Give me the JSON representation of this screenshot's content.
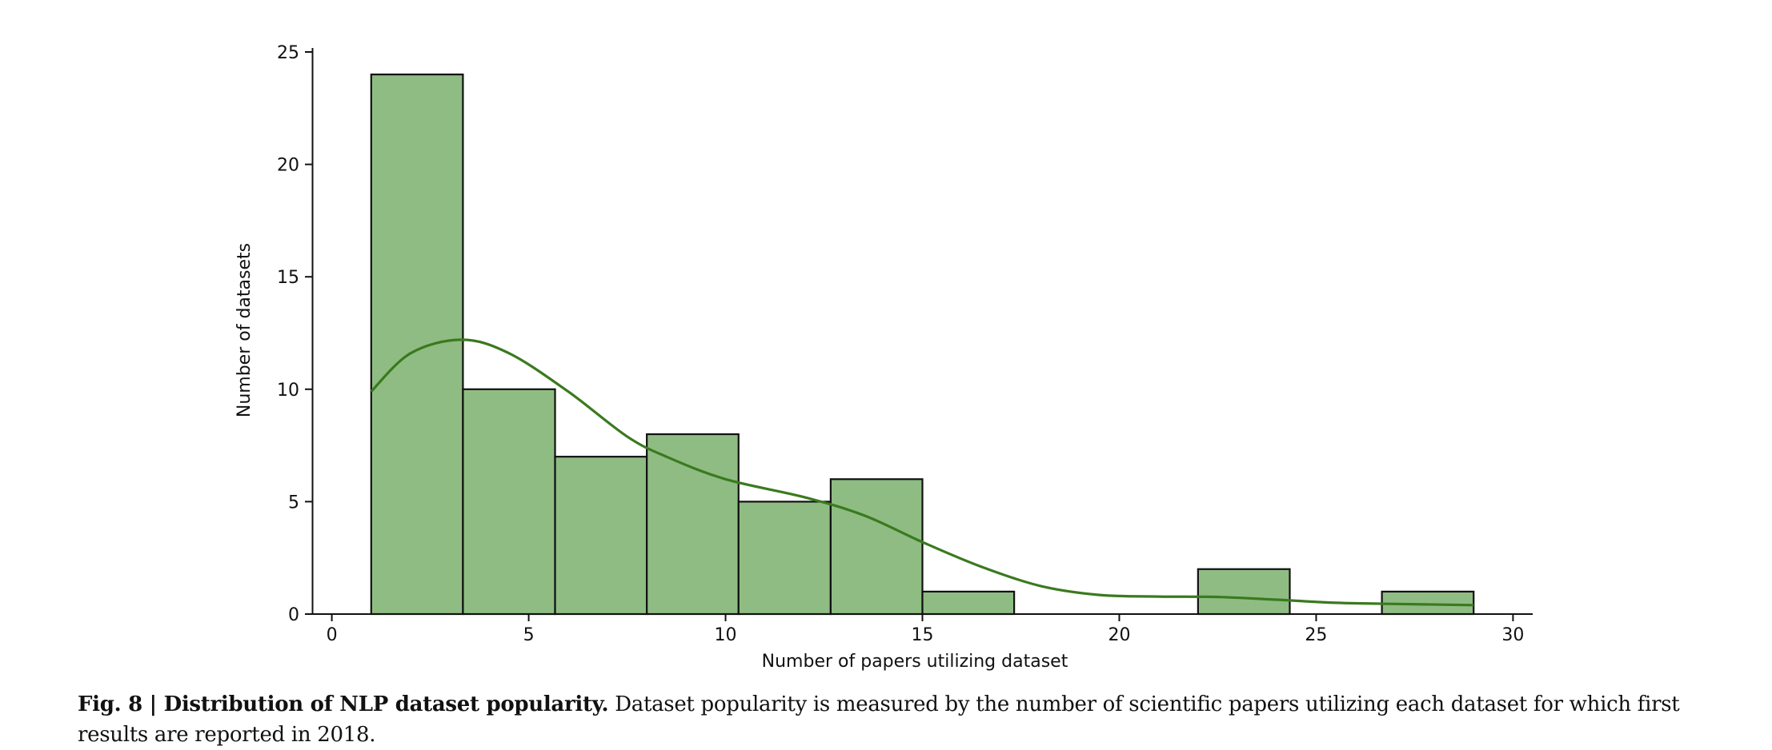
{
  "chart_data": {
    "type": "bar",
    "xlabel": "Number of papers utilizing dataset",
    "ylabel": "Number of datasets",
    "xlim": [
      -0.5,
      30.5
    ],
    "ylim": [
      0,
      25
    ],
    "x_ticks": [
      0,
      5,
      10,
      15,
      20,
      25,
      30
    ],
    "y_ticks": [
      0,
      5,
      10,
      15,
      20,
      25
    ],
    "bins": [
      {
        "x0": 1.0,
        "x1": 3.33,
        "count": 24
      },
      {
        "x0": 3.33,
        "x1": 5.67,
        "count": 10
      },
      {
        "x0": 5.67,
        "x1": 8.0,
        "count": 7
      },
      {
        "x0": 8.0,
        "x1": 10.33,
        "count": 8
      },
      {
        "x0": 10.33,
        "x1": 12.67,
        "count": 5
      },
      {
        "x0": 12.67,
        "x1": 15.0,
        "count": 6
      },
      {
        "x0": 15.0,
        "x1": 17.33,
        "count": 1
      },
      {
        "x0": 17.33,
        "x1": 19.67,
        "count": 0
      },
      {
        "x0": 19.67,
        "x1": 22.0,
        "count": 0
      },
      {
        "x0": 22.0,
        "x1": 24.33,
        "count": 2
      },
      {
        "x0": 24.33,
        "x1": 26.67,
        "count": 0
      },
      {
        "x0": 26.67,
        "x1": 29.0,
        "count": 1
      }
    ],
    "kde": {
      "x": [
        1.0,
        2.0,
        3.3,
        4.5,
        6.0,
        7.5,
        8.5,
        10.0,
        12.0,
        13.5,
        15.0,
        16.5,
        18.0,
        19.5,
        21.0,
        22.5,
        24.0,
        25.5,
        27.0,
        29.0
      ],
      "y": [
        9.9,
        11.6,
        12.2,
        11.6,
        9.9,
        7.9,
        7.0,
        6.0,
        5.2,
        4.4,
        3.2,
        2.1,
        1.25,
        0.85,
        0.78,
        0.76,
        0.64,
        0.5,
        0.45,
        0.4
      ]
    },
    "bar_color": "#8fbc83",
    "bar_edge_color": "#111111",
    "kde_color": "#3a7a1e",
    "grid": false,
    "legend": "none"
  },
  "caption": {
    "label": "Fig. 8 | ",
    "title": "Distribution of NLP dataset popularity.",
    "text": " Dataset popularity is measured by the number of scientific papers utilizing each dataset for which first results are reported in 2018."
  }
}
